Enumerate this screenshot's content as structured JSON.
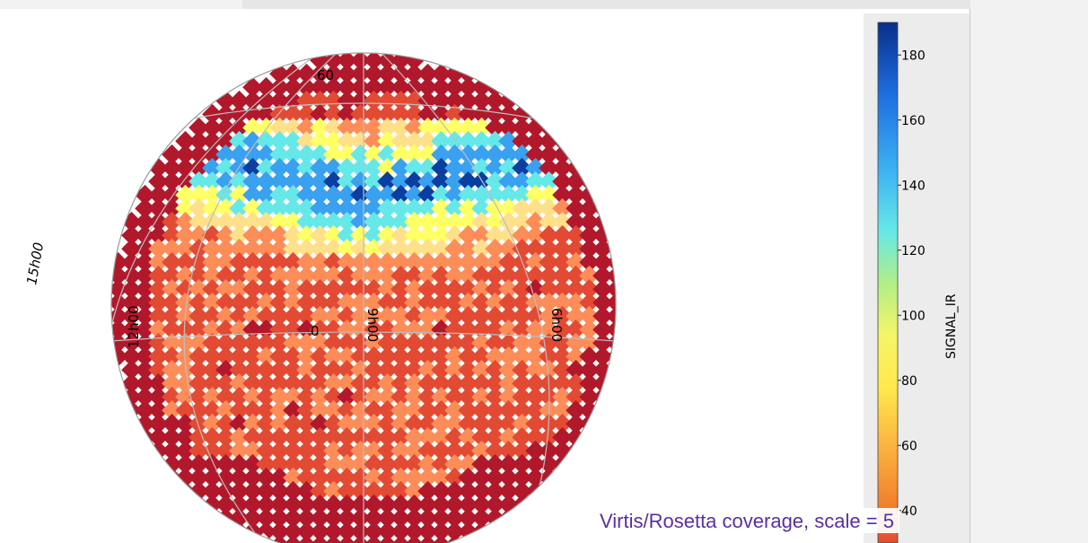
{
  "sphere_map": {
    "grid_labels": {
      "lat_60": "60",
      "lat_0": "0",
      "ra_15h": "15h00",
      "ra_12h": "12h00",
      "ra_9h": "9h00",
      "ra_6h": "6h00"
    }
  },
  "colorbar": {
    "label": "SIGNAL_IR",
    "ticks": [
      "180",
      "160",
      "140",
      "120",
      "100",
      "80",
      "60",
      "40"
    ],
    "tick_values": [
      180,
      160,
      140,
      120,
      100,
      80,
      60,
      40
    ],
    "range": [
      30,
      190
    ],
    "colormap": [
      "#b2182b",
      "#e34a33",
      "#fc8d59",
      "#fee08b",
      "#ffff66",
      "#66e8e8",
      "#3aa0f0",
      "#0a3ea0"
    ]
  },
  "caption": {
    "text": "Virtis/Rosetta coverage, scale = 5"
  }
}
